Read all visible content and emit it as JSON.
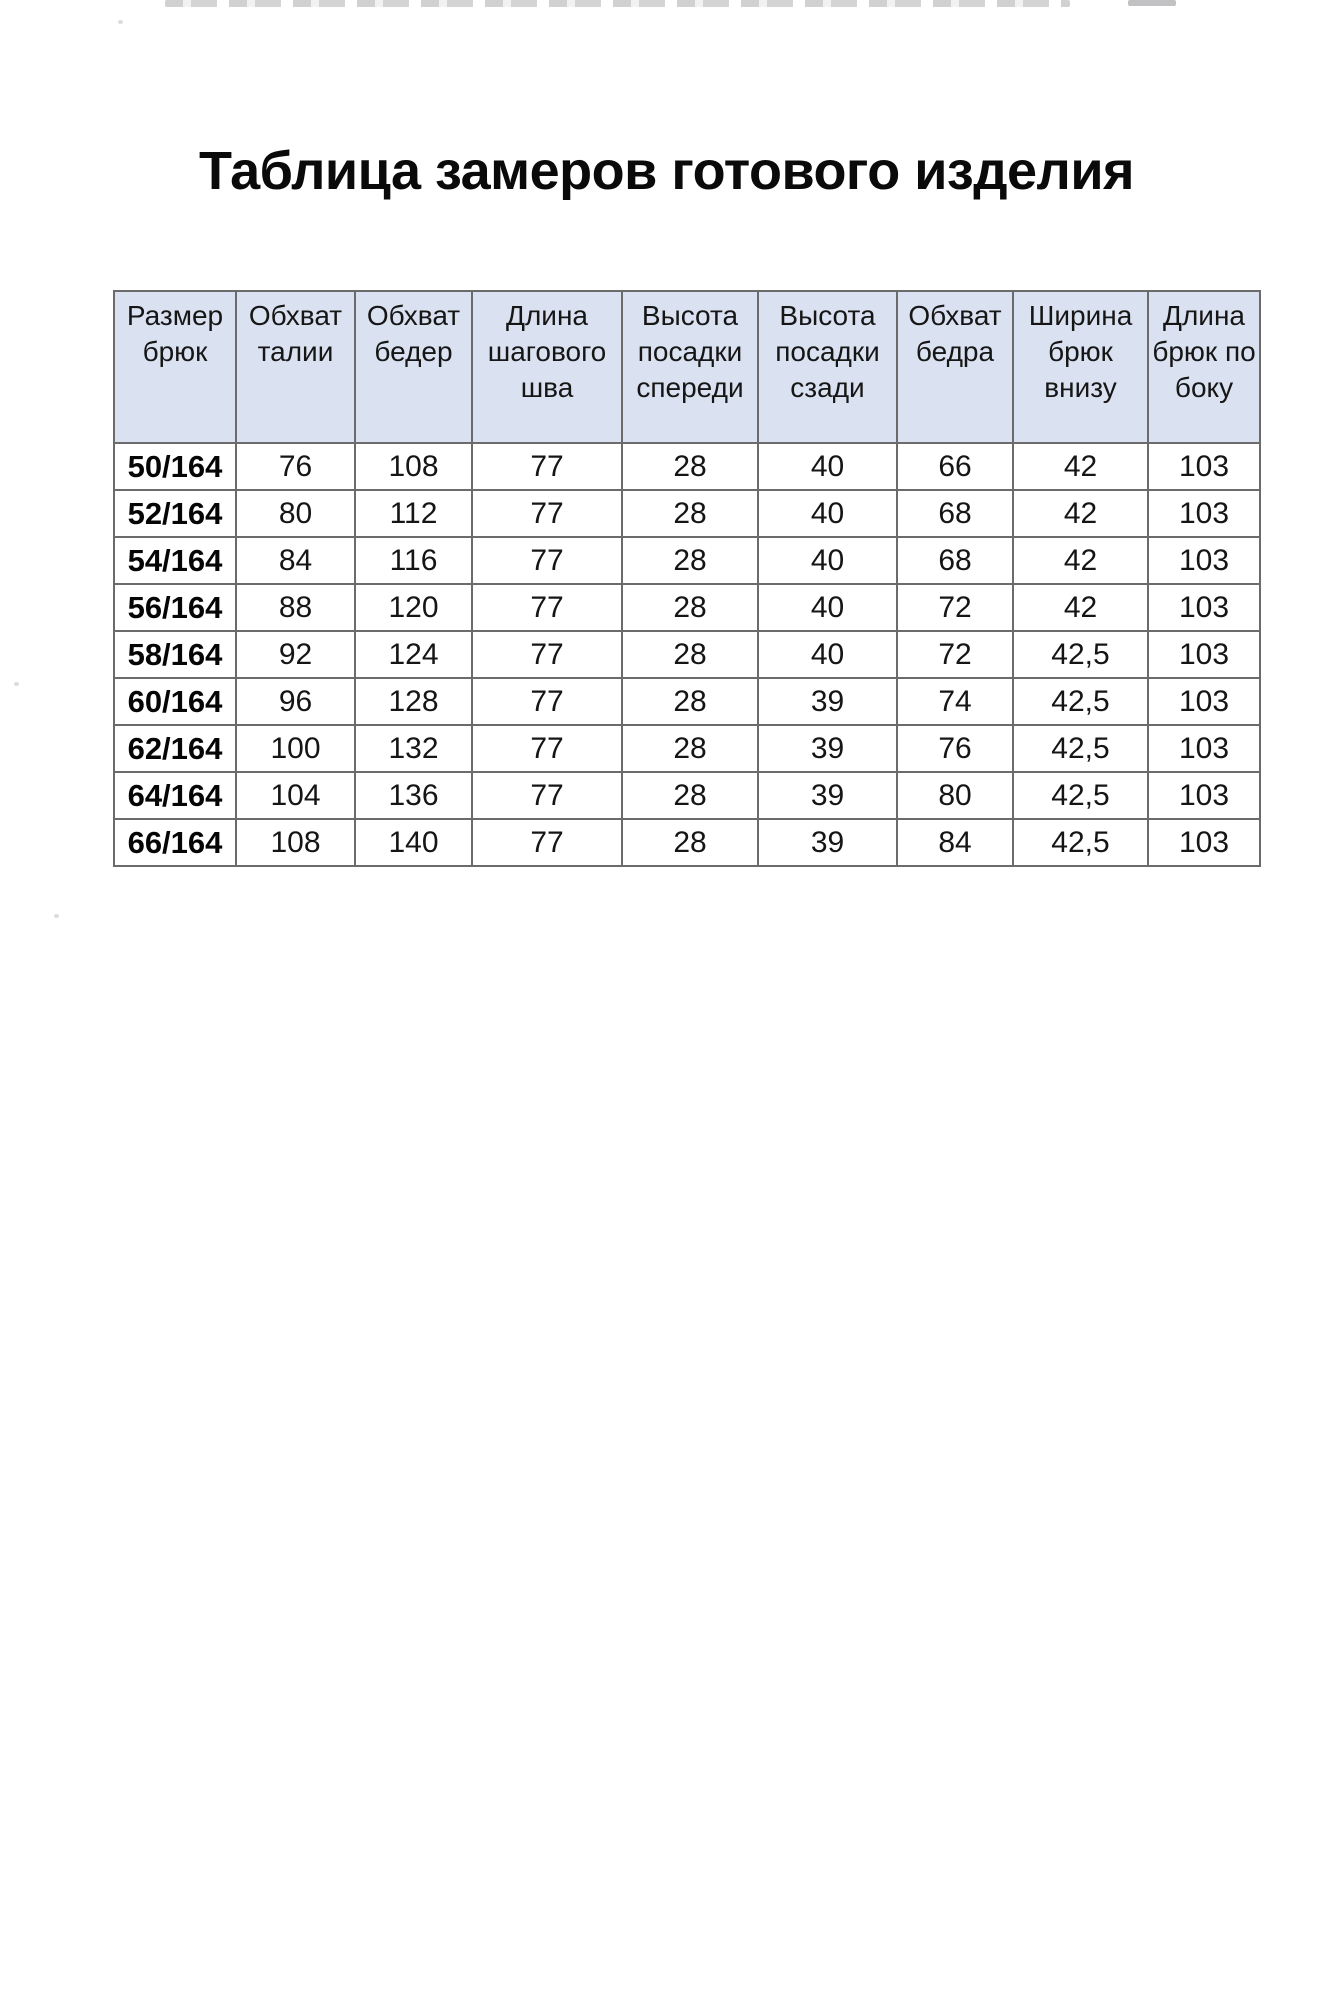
{
  "document": {
    "title": "Таблица замеров готового изделия"
  },
  "colors": {
    "header_bg": "#dae1f0",
    "border": "#6b6b6b",
    "text": "#151515"
  },
  "table": {
    "columns": [
      "Размер брюк",
      "Обхват талии",
      "Обхват бедер",
      "Длина шагового шва",
      "Высота посадки спереди",
      "Высота посадки сзади",
      "Обхват бедра",
      "Ширина брюк внизу",
      "Длина брюк по боку"
    ],
    "rows": [
      [
        "50/164",
        "76",
        "108",
        "77",
        "28",
        "40",
        "66",
        "42",
        "103"
      ],
      [
        "52/164",
        "80",
        "112",
        "77",
        "28",
        "40",
        "68",
        "42",
        "103"
      ],
      [
        "54/164",
        "84",
        "116",
        "77",
        "28",
        "40",
        "68",
        "42",
        "103"
      ],
      [
        "56/164",
        "88",
        "120",
        "77",
        "28",
        "40",
        "72",
        "42",
        "103"
      ],
      [
        "58/164",
        "92",
        "124",
        "77",
        "28",
        "40",
        "72",
        "42,5",
        "103"
      ],
      [
        "60/164",
        "96",
        "128",
        "77",
        "28",
        "39",
        "74",
        "42,5",
        "103"
      ],
      [
        "62/164",
        "100",
        "132",
        "77",
        "28",
        "39",
        "76",
        "42,5",
        "103"
      ],
      [
        "64/164",
        "104",
        "136",
        "77",
        "28",
        "39",
        "80",
        "42,5",
        "103"
      ],
      [
        "66/164",
        "108",
        "140",
        "77",
        "28",
        "39",
        "84",
        "42,5",
        "103"
      ]
    ]
  }
}
